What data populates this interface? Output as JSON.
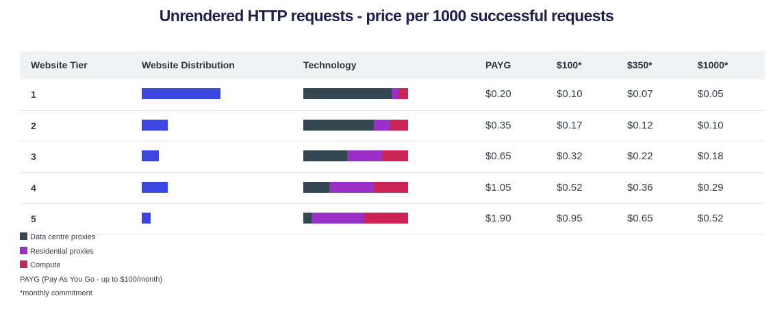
{
  "title": "Unrendered HTTP requests - price per 1000 successful requests",
  "columns": {
    "tier": "Website Tier",
    "distribution": "Website Distribution",
    "technology": "Technology",
    "payg": "PAYG",
    "p100": "$100*",
    "p350": "$350*",
    "p1000": "$1000*"
  },
  "colors": {
    "distribution": "#3b45e0",
    "datacentre": "#344652",
    "residential": "#9a2fc7",
    "compute": "#c92454"
  },
  "chart_data": {
    "type": "table",
    "distribution_units": "relative (fraction of max shown bar)",
    "rows": [
      {
        "tier": "1",
        "distribution": 1.0,
        "technology": {
          "datacentre": 0.84,
          "residential": 0.07,
          "compute": 0.09
        },
        "payg": "$0.20",
        "p100": "$0.10",
        "p350": "$0.07",
        "p1000": "$0.05"
      },
      {
        "tier": "2",
        "distribution": 0.33,
        "technology": {
          "datacentre": 0.67,
          "residential": 0.16,
          "compute": 0.17
        },
        "payg": "$0.35",
        "p100": "$0.17",
        "p350": "$0.12",
        "p1000": "$0.10"
      },
      {
        "tier": "3",
        "distribution": 0.22,
        "technology": {
          "datacentre": 0.42,
          "residential": 0.33,
          "compute": 0.25
        },
        "payg": "$0.65",
        "p100": "$0.32",
        "p350": "$0.22",
        "p1000": "$0.18"
      },
      {
        "tier": "4",
        "distribution": 0.33,
        "technology": {
          "datacentre": 0.25,
          "residential": 0.42,
          "compute": 0.33
        },
        "payg": "$1.05",
        "p100": "$0.52",
        "p350": "$0.36",
        "p1000": "$0.29"
      },
      {
        "tier": "5",
        "distribution": 0.11,
        "technology": {
          "datacentre": 0.08,
          "residential": 0.5,
          "compute": 0.42
        },
        "payg": "$1.90",
        "p100": "$0.95",
        "p350": "$0.65",
        "p1000": "$0.52"
      }
    ]
  },
  "legend": [
    {
      "key": "datacentre",
      "label": "Data centre proxies"
    },
    {
      "key": "residential",
      "label": "Residential proxies"
    },
    {
      "key": "compute",
      "label": "Compute"
    }
  ],
  "notes": {
    "payg": "PAYG (Pay As You Go - up to $100/month)",
    "commitment": "*monthly commitment"
  }
}
